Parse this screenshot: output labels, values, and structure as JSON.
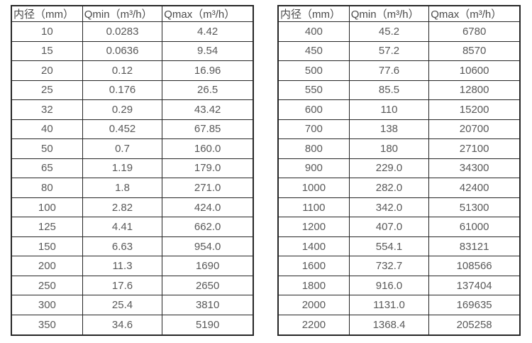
{
  "colors": {
    "border": "#262626",
    "header_text": "#4a4a4a",
    "cell_text": "#595959",
    "background": "#ffffff"
  },
  "tables": [
    {
      "name": "flow-spec-table-small-diameters",
      "headers": [
        "内径（mm）",
        "Qmin（m³/h）",
        "Qmax（m³/h）"
      ],
      "rows": [
        [
          "10",
          "0.0283",
          "4.42"
        ],
        [
          "15",
          "0.0636",
          "9.54"
        ],
        [
          "20",
          "0.12",
          "16.96"
        ],
        [
          "25",
          "0.176",
          "26.5"
        ],
        [
          "32",
          "0.29",
          "43.42"
        ],
        [
          "40",
          "0.452",
          "67.85"
        ],
        [
          "50",
          "0.7",
          "160.0"
        ],
        [
          "65",
          "1.19",
          "179.0"
        ],
        [
          "80",
          "1.8",
          "271.0"
        ],
        [
          "100",
          "2.82",
          "424.0"
        ],
        [
          "125",
          "4.41",
          "662.0"
        ],
        [
          "150",
          "6.63",
          "954.0"
        ],
        [
          "200",
          "11.3",
          "1690"
        ],
        [
          "250",
          "17.6",
          "2650"
        ],
        [
          "300",
          "25.4",
          "3810"
        ],
        [
          "350",
          "34.6",
          "5190"
        ]
      ]
    },
    {
      "name": "flow-spec-table-large-diameters",
      "headers": [
        "内径（mm）",
        "Qmin（m³/h）",
        "Qmax（m³/h）"
      ],
      "rows": [
        [
          "400",
          "45.2",
          "6780"
        ],
        [
          "450",
          "57.2",
          "8570"
        ],
        [
          "500",
          "77.6",
          "10600"
        ],
        [
          "550",
          "85.5",
          "12800"
        ],
        [
          "600",
          "110",
          "15200"
        ],
        [
          "700",
          "138",
          "20700"
        ],
        [
          "800",
          "180",
          "27100"
        ],
        [
          "900",
          "229.0",
          "34300"
        ],
        [
          "1000",
          "282.0",
          "42400"
        ],
        [
          "1100",
          "342.0",
          "51300"
        ],
        [
          "1200",
          "407.0",
          "61000"
        ],
        [
          "1400",
          "554.1",
          "83121"
        ],
        [
          "1600",
          "732.7",
          "108566"
        ],
        [
          "1800",
          "916.0",
          "137404"
        ],
        [
          "2000",
          "1131.0",
          "169635"
        ],
        [
          "2200",
          "1368.4",
          "205258"
        ]
      ]
    }
  ]
}
